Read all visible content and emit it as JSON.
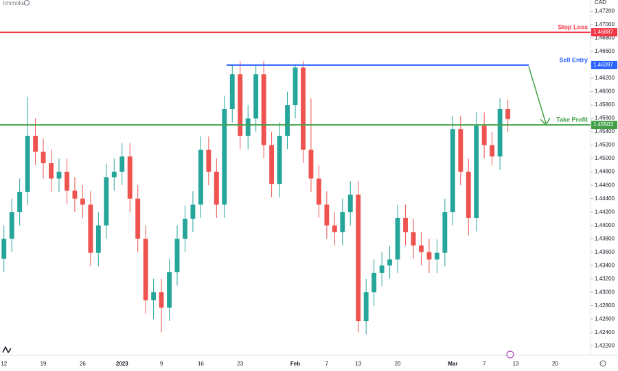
{
  "chart_data": {
    "type": "candlestick",
    "indicator": "Ichimoku",
    "currency": "CAD",
    "categories": [
      "12",
      null,
      null,
      null,
      null,
      "19",
      null,
      null,
      null,
      null,
      "26",
      null,
      null,
      null,
      null,
      "2023",
      null,
      null,
      null,
      null,
      "9",
      null,
      null,
      null,
      null,
      "16",
      null,
      null,
      null,
      null,
      "23",
      null,
      null,
      null,
      null,
      null,
      null,
      "Feb",
      null,
      null,
      null,
      "7",
      null,
      null,
      null,
      "13",
      null,
      null,
      null,
      null,
      "20",
      null,
      null,
      null,
      null,
      null,
      null,
      "Mar",
      null,
      null,
      null,
      "7",
      null,
      null,
      null,
      "13",
      null,
      null,
      null,
      null,
      "20",
      null,
      null,
      null,
      null
    ],
    "open": [
      1.435,
      1.438,
      1.442,
      1.445,
      1.4534,
      1.451,
      1.4493,
      1.447,
      1.448,
      1.4452,
      1.444,
      1.4431,
      1.4359,
      1.44,
      1.4472,
      1.448,
      1.4503,
      1.444,
      1.438,
      1.4288,
      1.43,
      1.4277,
      1.433,
      1.438,
      1.441,
      1.4431,
      1.4513,
      1.448,
      1.4431,
      1.4574,
      1.4626,
      1.4534,
      1.456,
      1.4626,
      1.452,
      1.4462,
      1.4534,
      1.458,
      1.4636,
      1.4513,
      1.447,
      1.4431,
      1.44,
      1.439,
      1.442,
      1.4446,
      1.4257,
      1.43,
      1.4329,
      1.434,
      1.4349,
      1.4411,
      1.439,
      1.437,
      1.436,
      1.4349,
      1.4359,
      1.442,
      1.4544,
      1.448,
      1.4411,
      1.4549,
      1.452,
      1.4503,
      1.4574,
      null,
      null,
      null,
      null,
      null,
      null,
      null,
      null,
      null,
      null
    ],
    "high": [
      1.44,
      1.444,
      1.447,
      1.4592,
      1.456,
      1.453,
      1.4513,
      1.45,
      1.45,
      1.4472,
      1.446,
      1.4451,
      1.442,
      1.4492,
      1.45,
      1.4523,
      1.4523,
      1.446,
      1.44,
      1.432,
      1.432,
      1.435,
      1.44,
      1.443,
      1.4451,
      1.4533,
      1.4533,
      1.45,
      1.4594,
      1.464,
      1.4646,
      1.458,
      1.464,
      1.4646,
      1.454,
      1.4554,
      1.46,
      1.4641,
      1.4646,
      1.459,
      1.449,
      1.4451,
      1.442,
      1.444,
      1.4466,
      1.4466,
      1.432,
      1.4349,
      1.436,
      1.4369,
      1.4431,
      1.4431,
      1.441,
      1.439,
      1.438,
      1.4379,
      1.444,
      1.4564,
      1.4564,
      1.45,
      1.4569,
      1.4569,
      1.454,
      1.459,
      1.4588,
      null,
      null,
      null,
      null,
      null,
      null,
      null,
      null,
      null,
      null
    ],
    "low": [
      1.433,
      1.436,
      1.44,
      1.443,
      1.449,
      1.447,
      1.445,
      1.445,
      1.4432,
      1.442,
      1.4411,
      1.4339,
      1.4339,
      1.438,
      1.4452,
      1.446,
      1.442,
      1.436,
      1.4268,
      1.426,
      1.424,
      1.4257,
      1.431,
      1.436,
      1.439,
      1.4411,
      1.446,
      1.4411,
      1.4411,
      1.4554,
      1.4514,
      1.4514,
      1.454,
      1.45,
      1.4442,
      1.4442,
      1.4514,
      1.456,
      1.4493,
      1.445,
      1.4411,
      1.438,
      1.437,
      1.437,
      1.44,
      1.424,
      1.4237,
      1.428,
      1.4309,
      1.432,
      1.4329,
      1.437,
      1.435,
      1.434,
      1.4329,
      1.4329,
      1.4339,
      1.44,
      1.446,
      1.4385,
      1.4391,
      1.45,
      1.449,
      1.4483,
      1.454,
      null,
      null,
      null,
      null,
      null,
      null,
      null,
      null,
      null,
      null
    ],
    "close": [
      1.438,
      1.442,
      1.445,
      1.4534,
      1.451,
      1.4493,
      1.447,
      1.448,
      1.4452,
      1.444,
      1.4431,
      1.4359,
      1.44,
      1.4472,
      1.448,
      1.4503,
      1.444,
      1.438,
      1.4288,
      1.43,
      1.4277,
      1.433,
      1.438,
      1.441,
      1.4431,
      1.4513,
      1.448,
      1.4431,
      1.4574,
      1.4626,
      1.4534,
      1.456,
      1.4626,
      1.452,
      1.4462,
      1.4534,
      1.458,
      1.4636,
      1.4513,
      1.447,
      1.4431,
      1.44,
      1.439,
      1.442,
      1.4446,
      1.4257,
      1.43,
      1.4329,
      1.434,
      1.4349,
      1.4411,
      1.439,
      1.437,
      1.436,
      1.4349,
      1.4359,
      1.442,
      1.4544,
      1.448,
      1.4411,
      1.4549,
      1.452,
      1.4503,
      1.4574,
      1.4559,
      null,
      null,
      null,
      null,
      null,
      null,
      null,
      null,
      null,
      null
    ],
    "up_color": "#26a69a",
    "down_color": "#ef5350",
    "levels": [
      {
        "name": "Stop Loss",
        "value": 1.46887,
        "color": "#f23645"
      },
      {
        "name": "Sell Entry",
        "value": 1.46397,
        "color": "#2962ff"
      },
      {
        "name": "Take Profit",
        "value": 1.45503,
        "color": "#43a047"
      }
    ],
    "ylim": [
      1.4212,
      1.4737
    ],
    "yticks": [
      {
        "value": 1.422,
        "label": "1.42200"
      },
      {
        "value": 1.424,
        "label": "1.42400"
      },
      {
        "value": 1.426,
        "label": "1.42600"
      },
      {
        "value": 1.428,
        "label": "1.42800"
      },
      {
        "value": 1.43,
        "label": "1.43000"
      },
      {
        "value": 1.432,
        "label": "1.43200"
      },
      {
        "value": 1.434,
        "label": "1.43400"
      },
      {
        "value": 1.436,
        "label": "1.43600"
      },
      {
        "value": 1.438,
        "label": "1.43800"
      },
      {
        "value": 1.44,
        "label": "1.44000"
      },
      {
        "value": 1.442,
        "label": "1.44200"
      },
      {
        "value": 1.444,
        "label": "1.44400"
      },
      {
        "value": 1.446,
        "label": "1.44600"
      },
      {
        "value": 1.448,
        "label": "1.44800"
      },
      {
        "value": 1.45,
        "label": "1.45000"
      },
      {
        "value": 1.452,
        "label": "1.45200"
      },
      {
        "value": 1.454,
        "label": "1.45400"
      },
      {
        "value": 1.456,
        "label": "1.45600"
      },
      {
        "value": 1.458,
        "label": "1.45800"
      },
      {
        "value": 1.46,
        "label": "1.46000"
      },
      {
        "value": 1.462,
        "label": "1.46200"
      },
      {
        "value": 1.464,
        "label": "1.46400"
      },
      {
        "value": 1.466,
        "label": "1.46600"
      },
      {
        "value": 1.468,
        "label": "1.46800"
      },
      {
        "value": 1.47,
        "label": "1.47000"
      },
      {
        "value": 1.472,
        "label": "1.47200"
      }
    ],
    "grid": false
  }
}
